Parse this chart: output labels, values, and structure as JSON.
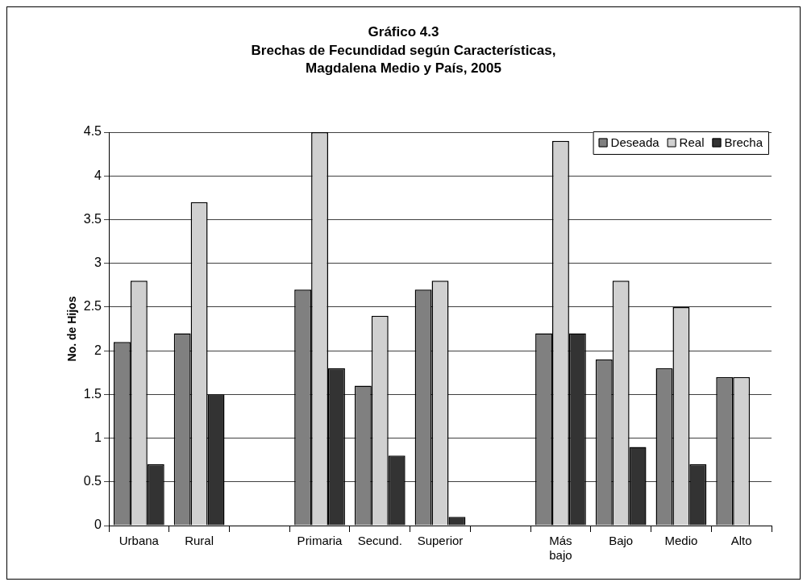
{
  "chart_data": {
    "type": "bar",
    "title": "Gráfico 4.3",
    "subtitle": "Brechas de Fecundidad según Características, Magdalena Medio y País, 2005",
    "ylabel": "No. de Hijos",
    "categories": [
      "Urbana",
      "Rural",
      null,
      "Primaria",
      "Secund.",
      "Superior",
      null,
      "Más bajo",
      "Bajo",
      "Medio",
      "Alto"
    ],
    "series": [
      {
        "name": "Deseada",
        "color": "#808080",
        "values": [
          2.1,
          2.2,
          null,
          2.7,
          1.6,
          2.7,
          null,
          2.2,
          1.9,
          1.8,
          1.7
        ]
      },
      {
        "name": "Real",
        "color": "#d0d0d0",
        "values": [
          2.8,
          3.7,
          null,
          4.5,
          2.4,
          2.8,
          null,
          4.4,
          2.8,
          2.5,
          1.7
        ]
      },
      {
        "name": "Brecha",
        "color": "#333333",
        "values": [
          0.7,
          1.5,
          null,
          1.8,
          0.8,
          0.1,
          null,
          2.2,
          0.9,
          0.7,
          0
        ]
      }
    ],
    "ylim": [
      0,
      4.5
    ],
    "yticks": [
      0,
      0.5,
      1,
      1.5,
      2,
      2.5,
      3,
      3.5,
      4,
      4.5
    ],
    "grid": "y",
    "legend": "top right"
  }
}
